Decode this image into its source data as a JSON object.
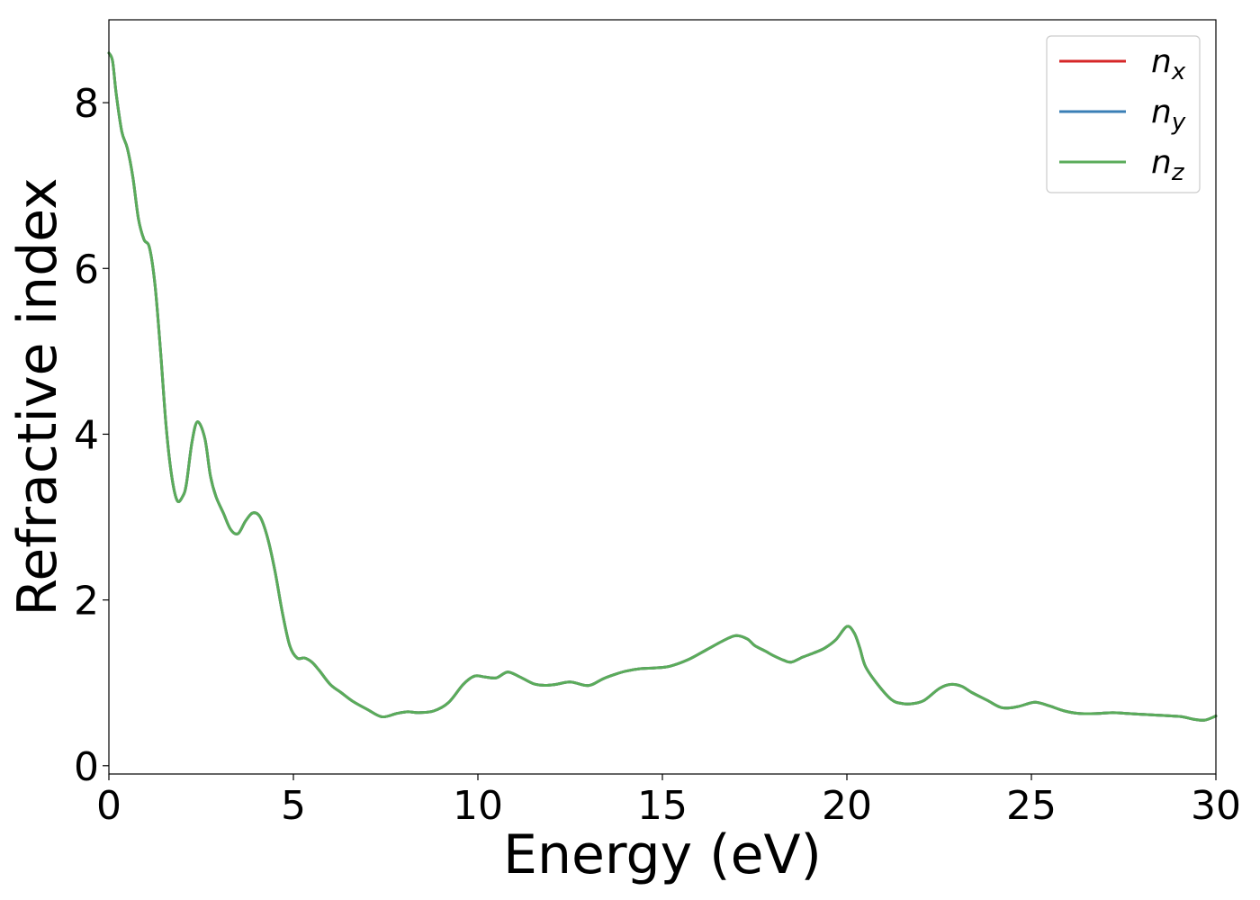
{
  "chart_data": {
    "type": "line",
    "title": "",
    "xlabel": "Energy (eV)",
    "ylabel": "Refractive index",
    "xlim": [
      0,
      30
    ],
    "ylim": [
      -0.1,
      9.0
    ],
    "xticks": [
      0,
      5,
      10,
      15,
      20,
      25,
      30
    ],
    "yticks": [
      0,
      2,
      4,
      6,
      8
    ],
    "grid": false,
    "legend_position": "top-right",
    "series": [
      {
        "name": "x",
        "label_base": "n",
        "label_sub": "x",
        "color": "#d62728",
        "x": [
          0,
          0.1,
          0.2,
          0.35,
          0.5,
          0.65,
          0.8,
          0.95,
          1.1,
          1.25,
          1.4,
          1.55,
          1.7,
          1.85,
          2.0,
          2.1,
          2.25,
          2.4,
          2.6,
          2.75,
          2.9,
          3.1,
          3.3,
          3.5,
          3.7,
          3.9,
          4.1,
          4.3,
          4.5,
          4.7,
          4.9,
          5.1,
          5.3,
          5.5,
          5.7,
          6.0,
          6.3,
          6.6,
          7.0,
          7.4,
          7.8,
          8.1,
          8.4,
          8.8,
          9.2,
          9.6,
          9.9,
          10.2,
          10.5,
          10.8,
          11.1,
          11.5,
          11.8,
          12.1,
          12.5,
          12.9,
          13.1,
          13.4,
          13.7,
          14.0,
          14.4,
          14.8,
          15.2,
          15.7,
          16.2,
          16.7,
          17.0,
          17.3,
          17.5,
          17.8,
          18.0,
          18.3,
          18.5,
          18.8,
          19.1,
          19.4,
          19.7,
          20.0,
          20.2,
          20.35,
          20.5,
          20.8,
          21.2,
          21.5,
          21.8,
          22.1,
          22.5,
          22.8,
          23.1,
          23.4,
          23.8,
          24.2,
          24.6,
          25.0,
          25.2,
          25.5,
          25.9,
          26.3,
          26.8,
          27.2,
          27.6,
          28.0,
          28.4,
          28.8,
          29.1,
          29.4,
          29.7,
          30.0
        ],
        "values": [
          8.6,
          8.5,
          8.1,
          7.65,
          7.45,
          7.1,
          6.6,
          6.35,
          6.25,
          5.8,
          5.0,
          4.1,
          3.5,
          3.2,
          3.25,
          3.4,
          3.9,
          4.15,
          3.95,
          3.5,
          3.25,
          3.05,
          2.85,
          2.8,
          2.95,
          3.05,
          3.0,
          2.75,
          2.35,
          1.85,
          1.45,
          1.3,
          1.3,
          1.25,
          1.15,
          0.98,
          0.88,
          0.78,
          0.68,
          0.59,
          0.63,
          0.65,
          0.64,
          0.66,
          0.76,
          0.98,
          1.08,
          1.07,
          1.06,
          1.13,
          1.08,
          0.99,
          0.97,
          0.98,
          1.01,
          0.97,
          0.98,
          1.05,
          1.1,
          1.14,
          1.17,
          1.18,
          1.2,
          1.28,
          1.4,
          1.52,
          1.57,
          1.53,
          1.45,
          1.38,
          1.33,
          1.27,
          1.25,
          1.31,
          1.36,
          1.42,
          1.52,
          1.68,
          1.6,
          1.42,
          1.2,
          1.0,
          0.8,
          0.75,
          0.75,
          0.79,
          0.93,
          0.98,
          0.96,
          0.88,
          0.79,
          0.7,
          0.71,
          0.76,
          0.76,
          0.72,
          0.66,
          0.63,
          0.63,
          0.64,
          0.63,
          0.62,
          0.61,
          0.6,
          0.59,
          0.56,
          0.55,
          0.6
        ]
      },
      {
        "name": "y",
        "label_base": "n",
        "label_sub": "y",
        "color": "#3a7fb6",
        "x": [
          0,
          0.1,
          0.2,
          0.35,
          0.5,
          0.65,
          0.8,
          0.95,
          1.1,
          1.25,
          1.4,
          1.55,
          1.7,
          1.85,
          2.0,
          2.1,
          2.25,
          2.4,
          2.6,
          2.75,
          2.9,
          3.1,
          3.3,
          3.5,
          3.7,
          3.9,
          4.1,
          4.3,
          4.5,
          4.7,
          4.9,
          5.1,
          5.3,
          5.5,
          5.7,
          6.0,
          6.3,
          6.6,
          7.0,
          7.4,
          7.8,
          8.1,
          8.4,
          8.8,
          9.2,
          9.6,
          9.9,
          10.2,
          10.5,
          10.8,
          11.1,
          11.5,
          11.8,
          12.1,
          12.5,
          12.9,
          13.1,
          13.4,
          13.7,
          14.0,
          14.4,
          14.8,
          15.2,
          15.7,
          16.2,
          16.7,
          17.0,
          17.3,
          17.5,
          17.8,
          18.0,
          18.3,
          18.5,
          18.8,
          19.1,
          19.4,
          19.7,
          20.0,
          20.2,
          20.35,
          20.5,
          20.8,
          21.2,
          21.5,
          21.8,
          22.1,
          22.5,
          22.8,
          23.1,
          23.4,
          23.8,
          24.2,
          24.6,
          25.0,
          25.2,
          25.5,
          25.9,
          26.3,
          26.8,
          27.2,
          27.6,
          28.0,
          28.4,
          28.8,
          29.1,
          29.4,
          29.7,
          30.0
        ],
        "values": [
          8.6,
          8.5,
          8.1,
          7.65,
          7.45,
          7.1,
          6.6,
          6.35,
          6.25,
          5.8,
          5.0,
          4.1,
          3.5,
          3.2,
          3.25,
          3.4,
          3.9,
          4.15,
          3.95,
          3.5,
          3.25,
          3.05,
          2.85,
          2.8,
          2.95,
          3.05,
          3.0,
          2.75,
          2.35,
          1.85,
          1.45,
          1.3,
          1.3,
          1.25,
          1.15,
          0.98,
          0.88,
          0.78,
          0.68,
          0.59,
          0.63,
          0.65,
          0.64,
          0.66,
          0.76,
          0.98,
          1.08,
          1.07,
          1.06,
          1.13,
          1.08,
          0.99,
          0.97,
          0.98,
          1.01,
          0.97,
          0.98,
          1.05,
          1.1,
          1.14,
          1.17,
          1.18,
          1.2,
          1.28,
          1.4,
          1.52,
          1.57,
          1.53,
          1.45,
          1.38,
          1.33,
          1.27,
          1.25,
          1.31,
          1.36,
          1.42,
          1.52,
          1.68,
          1.6,
          1.42,
          1.2,
          1.0,
          0.8,
          0.75,
          0.75,
          0.79,
          0.93,
          0.98,
          0.96,
          0.88,
          0.79,
          0.7,
          0.71,
          0.76,
          0.76,
          0.72,
          0.66,
          0.63,
          0.63,
          0.64,
          0.63,
          0.62,
          0.61,
          0.6,
          0.59,
          0.56,
          0.55,
          0.6
        ]
      },
      {
        "name": "z",
        "label_base": "n",
        "label_sub": "z",
        "color": "#5aac5a",
        "x": [
          0,
          0.1,
          0.2,
          0.35,
          0.5,
          0.65,
          0.8,
          0.95,
          1.1,
          1.25,
          1.4,
          1.55,
          1.7,
          1.85,
          2.0,
          2.1,
          2.25,
          2.4,
          2.6,
          2.75,
          2.9,
          3.1,
          3.3,
          3.5,
          3.7,
          3.9,
          4.1,
          4.3,
          4.5,
          4.7,
          4.9,
          5.1,
          5.3,
          5.5,
          5.7,
          6.0,
          6.3,
          6.6,
          7.0,
          7.4,
          7.8,
          8.1,
          8.4,
          8.8,
          9.2,
          9.6,
          9.9,
          10.2,
          10.5,
          10.8,
          11.1,
          11.5,
          11.8,
          12.1,
          12.5,
          12.9,
          13.1,
          13.4,
          13.7,
          14.0,
          14.4,
          14.8,
          15.2,
          15.7,
          16.2,
          16.7,
          17.0,
          17.3,
          17.5,
          17.8,
          18.0,
          18.3,
          18.5,
          18.8,
          19.1,
          19.4,
          19.7,
          20.0,
          20.2,
          20.35,
          20.5,
          20.8,
          21.2,
          21.5,
          21.8,
          22.1,
          22.5,
          22.8,
          23.1,
          23.4,
          23.8,
          24.2,
          24.6,
          25.0,
          25.2,
          25.5,
          25.9,
          26.3,
          26.8,
          27.2,
          27.6,
          28.0,
          28.4,
          28.8,
          29.1,
          29.4,
          29.7,
          30.0
        ],
        "values": [
          8.6,
          8.5,
          8.1,
          7.65,
          7.45,
          7.1,
          6.6,
          6.35,
          6.25,
          5.8,
          5.0,
          4.1,
          3.5,
          3.2,
          3.25,
          3.4,
          3.9,
          4.15,
          3.95,
          3.5,
          3.25,
          3.05,
          2.85,
          2.8,
          2.95,
          3.05,
          3.0,
          2.75,
          2.35,
          1.85,
          1.45,
          1.3,
          1.3,
          1.25,
          1.15,
          0.98,
          0.88,
          0.78,
          0.68,
          0.59,
          0.63,
          0.65,
          0.64,
          0.66,
          0.76,
          0.98,
          1.08,
          1.07,
          1.06,
          1.13,
          1.08,
          0.99,
          0.97,
          0.98,
          1.01,
          0.97,
          0.98,
          1.05,
          1.1,
          1.14,
          1.17,
          1.18,
          1.2,
          1.28,
          1.4,
          1.52,
          1.57,
          1.53,
          1.45,
          1.38,
          1.33,
          1.27,
          1.25,
          1.31,
          1.36,
          1.42,
          1.52,
          1.68,
          1.6,
          1.42,
          1.2,
          1.0,
          0.8,
          0.75,
          0.75,
          0.79,
          0.93,
          0.98,
          0.96,
          0.88,
          0.79,
          0.7,
          0.71,
          0.76,
          0.76,
          0.72,
          0.66,
          0.63,
          0.63,
          0.64,
          0.63,
          0.62,
          0.61,
          0.6,
          0.59,
          0.56,
          0.55,
          0.6
        ]
      }
    ]
  }
}
